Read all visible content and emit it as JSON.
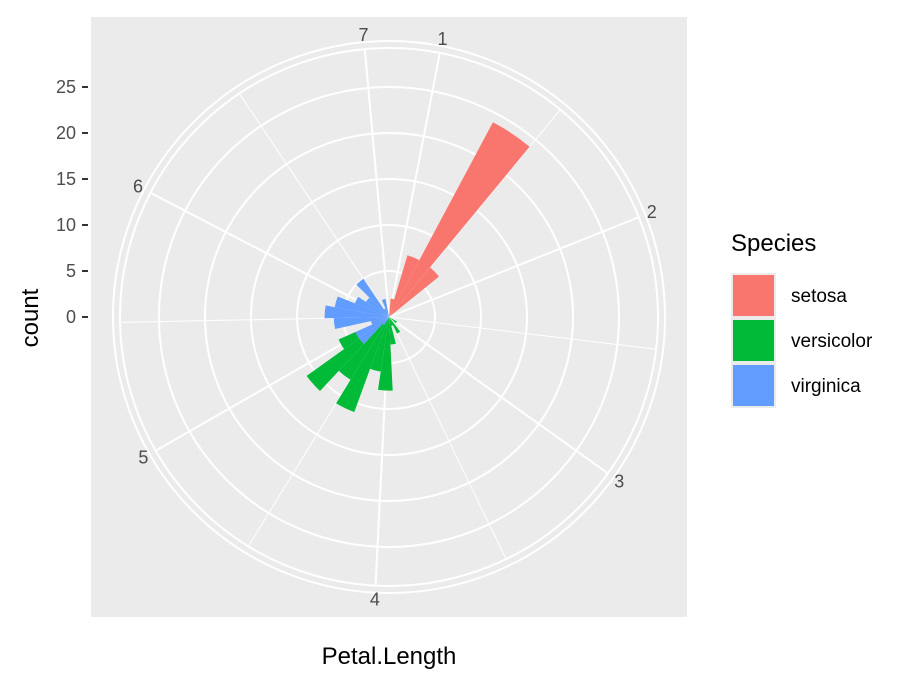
{
  "chart_data": {
    "type": "bar",
    "coord": "polar",
    "xlabel": "Petal.Length",
    "ylabel": "count",
    "theta_ticks": [
      "1",
      "2",
      "3",
      "4",
      "5",
      "6",
      "7"
    ],
    "r_ticks": [
      "0",
      "5",
      "10",
      "15",
      "20",
      "25"
    ],
    "bin_width": 0.2,
    "stacked": true,
    "bins": [
      1.0,
      1.2,
      1.4,
      1.6,
      1.8,
      3.0,
      3.2,
      3.4,
      3.6,
      3.8,
      4.0,
      4.2,
      4.4,
      4.6,
      4.8,
      5.0,
      5.2,
      5.4,
      5.6,
      5.8,
      6.0,
      6.2,
      6.4,
      6.6,
      6.8
    ],
    "series": [
      {
        "name": "setosa",
        "values": [
          2,
          7,
          24,
          7,
          0,
          0,
          0,
          0,
          0,
          0,
          0,
          0,
          0,
          0,
          0,
          0,
          0,
          0,
          0,
          0,
          0,
          0,
          0,
          0,
          0
        ]
      },
      {
        "name": "versicolor",
        "values": [
          0,
          0,
          0,
          0,
          0,
          1,
          0,
          2,
          1,
          3,
          8,
          6,
          11,
          7,
          7,
          2,
          0,
          0,
          0,
          0,
          0,
          0,
          0,
          0,
          0
        ]
      },
      {
        "name": "virginica",
        "values": [
          0,
          0,
          0,
          0,
          0,
          0,
          0,
          0,
          0,
          0,
          0,
          0,
          0,
          1,
          4,
          4,
          2,
          6,
          7,
          6,
          4,
          3,
          5,
          1,
          2
        ]
      }
    ],
    "colors": [
      "#F8766D",
      "#00BA38",
      "#619CFF"
    ],
    "legend": {
      "title": "Species",
      "position": "right"
    },
    "grid": true
  }
}
